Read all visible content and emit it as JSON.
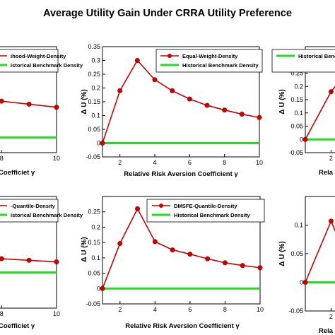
{
  "figure": {
    "title": "Average Utility Gain Under CRRA Utility Preference"
  },
  "chart_data": [
    {
      "type": "line",
      "panel": "top-left (cropped)",
      "xlabel": "Coefficiet γ",
      "ylabel": "",
      "xlim": [
        1,
        10
      ],
      "ylim": [
        -0.05,
        0.3
      ],
      "xticks": [
        8,
        10
      ],
      "yticks": [],
      "legend_position": "top-right",
      "x": [
        5,
        6,
        7,
        8,
        9,
        10
      ],
      "series": [
        {
          "name": "ihood-Weight-Density",
          "color": "#cc0000",
          "marker": "circle",
          "values": [
            0.155,
            0.145,
            0.13,
            0.12,
            0.11,
            0.1
          ]
        },
        {
          "name": "istorical Benchmark Density",
          "color": "#22dd22",
          "marker": "none",
          "values": [
            0,
            0,
            0,
            0,
            0,
            0
          ]
        }
      ]
    },
    {
      "type": "line",
      "panel": "top-center",
      "xlabel": "Relative Risk Aversion Coefficient γ",
      "ylabel": "Δ U (%)",
      "xlim": [
        1,
        10
      ],
      "ylim": [
        -0.05,
        0.35
      ],
      "xticks": [
        2,
        4,
        6,
        8,
        10
      ],
      "yticks": [
        "-0.05",
        "0",
        "0.05",
        "0.1",
        "0.15",
        "0.2",
        "0.25",
        "0.3",
        "0.35"
      ],
      "legend_position": "top-right",
      "x": [
        1,
        2,
        3,
        4,
        5,
        6,
        7,
        8,
        9,
        10
      ],
      "series": [
        {
          "name": "Equal-Weight-Density",
          "color": "#cc0000",
          "marker": "circle",
          "values": [
            0,
            0.19,
            0.3,
            0.23,
            0.19,
            0.16,
            0.137,
            0.12,
            0.105,
            0.093
          ]
        },
        {
          "name": "Historical Benchmark Density",
          "color": "#22dd22",
          "marker": "none",
          "values": [
            0,
            0,
            0,
            0,
            0,
            0,
            0,
            0,
            0,
            0
          ]
        }
      ]
    },
    {
      "type": "line",
      "panel": "top-right (cropped)",
      "xlabel": "Rela",
      "ylabel": "Δ U (%)",
      "xlim": [
        1,
        10
      ],
      "ylim": [
        -0.05,
        0.35
      ],
      "xticks": [
        2
      ],
      "yticks": [
        "-0.05",
        "0",
        "0.05",
        "0.1",
        "0.15",
        "0.2",
        "0.25",
        "0.3"
      ],
      "legend_position": "top-right",
      "x": [
        1,
        2,
        3
      ],
      "series": [
        {
          "name": "Historical Benchmark Density",
          "color": "#22dd22",
          "marker": "none",
          "values": [
            0,
            0,
            0
          ]
        },
        {
          "name": "",
          "color": "#cc0000",
          "marker": "circle",
          "values": [
            0,
            0.18,
            0.3
          ]
        }
      ]
    },
    {
      "type": "line",
      "panel": "bottom-left (cropped)",
      "xlabel": "Coefficiet γ",
      "ylabel": "",
      "xlim": [
        1,
        10
      ],
      "ylim": [
        -0.05,
        0.3
      ],
      "xticks": [
        8,
        10
      ],
      "yticks": [],
      "legend_position": "top-right",
      "x": [
        5,
        6,
        7,
        8,
        9,
        10
      ],
      "series": [
        {
          "name": "-Quantile-Density",
          "color": "#cc0000",
          "marker": "circle",
          "values": [
            0.125,
            0.12,
            0.11,
            0.105,
            0.1,
            0.095
          ]
        },
        {
          "name": "istorical Benchmark Density",
          "color": "#22dd22",
          "marker": "none",
          "values": [
            0.062,
            0.062,
            0.062,
            0.062,
            0.062,
            0.062
          ]
        }
      ]
    },
    {
      "type": "line",
      "panel": "bottom-center",
      "xlabel": "Relative Risk Aversion Coefficient γ",
      "ylabel": "Δ U (%)",
      "xlim": [
        1,
        10
      ],
      "ylim": [
        -0.05,
        0.3
      ],
      "xticks": [
        2,
        4,
        6,
        8,
        10
      ],
      "yticks": [
        "-0.05",
        "0",
        "0.05",
        "0.1",
        "0.15",
        "0.2",
        "0.25"
      ],
      "legend_position": "top-right",
      "x": [
        1,
        2,
        3,
        4,
        5,
        6,
        7,
        8,
        9,
        10
      ],
      "series": [
        {
          "name": "DMSFE-Quantile-Density",
          "color": "#cc0000",
          "marker": "circle",
          "values": [
            0,
            0.147,
            0.26,
            0.153,
            0.126,
            0.112,
            0.097,
            0.084,
            0.075,
            0.068
          ]
        },
        {
          "name": "Historical Benchmark Density",
          "color": "#22dd22",
          "marker": "none",
          "values": [
            0,
            0,
            0,
            0,
            0,
            0,
            0,
            0,
            0,
            0
          ]
        }
      ]
    },
    {
      "type": "line",
      "panel": "bottom-right (cropped)",
      "xlabel": "Rela",
      "ylabel": "Δ U (%)",
      "xlim": [
        1,
        10
      ],
      "ylim": [
        -0.05,
        0.15
      ],
      "xticks": [
        2
      ],
      "yticks": [
        "-0.05",
        "0",
        "0.05",
        "0.1"
      ],
      "legend_position": "top-right",
      "x": [
        1,
        2,
        3
      ],
      "series": [
        {
          "name": "",
          "color": "#cc0000",
          "marker": "circle",
          "values": [
            0,
            0.107,
            0
          ]
        },
        {
          "name": "",
          "color": "#22dd22",
          "marker": "none",
          "values": [
            0,
            0,
            0
          ]
        }
      ]
    }
  ]
}
